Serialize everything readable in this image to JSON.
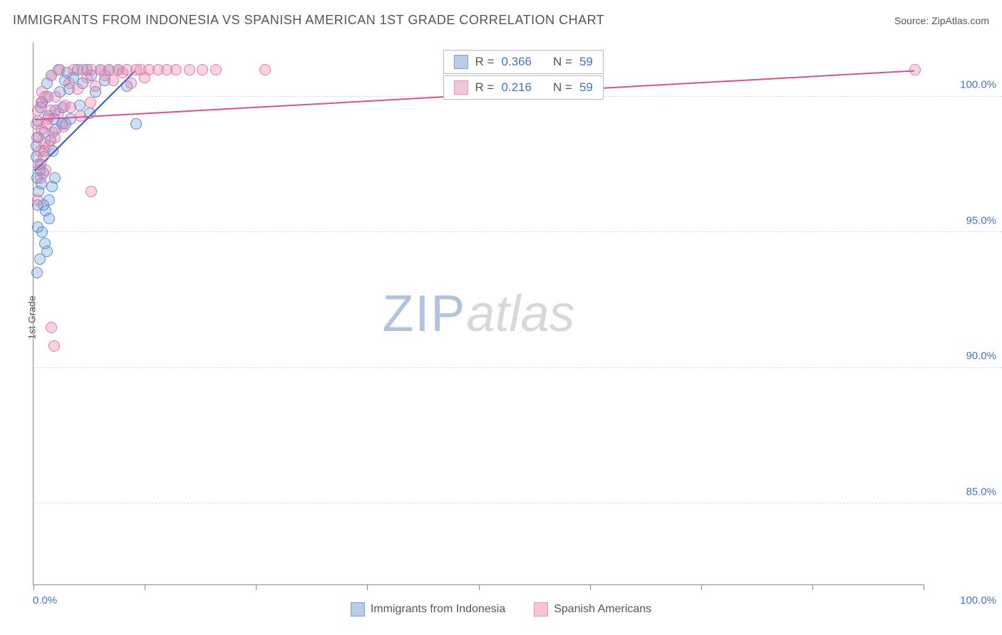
{
  "header": {
    "title": "IMMIGRANTS FROM INDONESIA VS SPANISH AMERICAN 1ST GRADE CORRELATION CHART",
    "source": "Source: ZipAtlas.com"
  },
  "watermark": {
    "zip": "ZIP",
    "atlas": "atlas"
  },
  "chart": {
    "type": "scatter",
    "y_axis_label": "1st Grade",
    "xlim": [
      0,
      100
    ],
    "ylim": [
      82,
      102
    ],
    "x_ticks": [
      0,
      12.5,
      25,
      37.5,
      50,
      62.5,
      75,
      87.5,
      100
    ],
    "x_tick_labels": {
      "0": "0.0%",
      "100": "100.0%"
    },
    "y_gridlines": [
      85,
      90,
      95,
      100
    ],
    "y_tick_labels": {
      "85": "85.0%",
      "90": "90.0%",
      "95": "95.0%",
      "100": "100.0%"
    },
    "background_color": "#ffffff",
    "grid_color": "#dddddd",
    "axis_color": "#888888",
    "tick_label_color": "#4472c4",
    "series": [
      {
        "name": "Immigrants from Indonesia",
        "color_fill": "rgba(115,160,220,0.35)",
        "color_stroke": "#5b8bd0",
        "legend_swatch_fill": "#b8cce8",
        "legend_swatch_stroke": "#7aa0d8",
        "r_value": "0.366",
        "n_value": "59",
        "trend": {
          "x1": 0.2,
          "y1": 97.3,
          "x2": 11.5,
          "y2": 101,
          "color": "#2e5cb8",
          "width": 2
        },
        "points": [
          [
            0.3,
            98.2
          ],
          [
            0.5,
            99.1
          ],
          [
            0.8,
            97.5
          ],
          [
            1.0,
            99.8
          ],
          [
            1.2,
            98.7
          ],
          [
            1.5,
            100.5
          ],
          [
            1.7,
            99.3
          ],
          [
            2.0,
            100.8
          ],
          [
            2.2,
            98.0
          ],
          [
            2.5,
            99.5
          ],
          [
            2.8,
            101
          ],
          [
            3.0,
            100.2
          ],
          [
            3.2,
            99.0
          ],
          [
            3.5,
            100.6
          ],
          [
            3.8,
            100.9
          ],
          [
            4.0,
            100.3
          ],
          [
            4.5,
            100.7
          ],
          [
            5.0,
            101
          ],
          [
            5.5,
            100.5
          ],
          [
            6.0,
            101
          ],
          [
            6.5,
            100.8
          ],
          [
            7.0,
            100.2
          ],
          [
            7.5,
            101
          ],
          [
            8.0,
            100.6
          ],
          [
            8.5,
            101
          ],
          [
            9.5,
            101
          ],
          [
            10.5,
            100.4
          ],
          [
            11.5,
            99.0
          ],
          [
            0.4,
            97.0
          ],
          [
            0.6,
            96.5
          ],
          [
            0.9,
            96.8
          ],
          [
            1.1,
            97.2
          ],
          [
            1.4,
            95.8
          ],
          [
            1.8,
            96.2
          ],
          [
            2.1,
            96.7
          ],
          [
            0.5,
            95.2
          ],
          [
            1.0,
            95.0
          ],
          [
            1.3,
            94.6
          ],
          [
            0.7,
            94.0
          ],
          [
            1.5,
            94.3
          ],
          [
            0.4,
            93.5
          ],
          [
            0.6,
            98.5
          ],
          [
            1.2,
            98.0
          ],
          [
            1.9,
            98.4
          ],
          [
            2.5,
            98.8
          ],
          [
            3.3,
            99.6
          ],
          [
            4.2,
            99.2
          ],
          [
            5.2,
            99.7
          ],
          [
            6.3,
            99.4
          ],
          [
            0.8,
            99.6
          ],
          [
            1.6,
            100.0
          ],
          [
            2.3,
            99.2
          ],
          [
            3.6,
            99.0
          ],
          [
            0.3,
            97.8
          ],
          [
            0.7,
            97.3
          ],
          [
            1.1,
            96.0
          ],
          [
            1.8,
            95.5
          ],
          [
            2.4,
            97.0
          ],
          [
            0.5,
            96.0
          ]
        ]
      },
      {
        "name": "Spanish Americans",
        "color_fill": "rgba(235,130,170,0.35)",
        "color_stroke": "#e07ba8",
        "legend_swatch_fill": "#f4c5d8",
        "legend_swatch_stroke": "#e892b8",
        "r_value": "0.216",
        "n_value": "59",
        "trend": {
          "x1": 0.2,
          "y1": 99.2,
          "x2": 99,
          "y2": 101,
          "color": "#e05090",
          "width": 2
        },
        "points": [
          [
            0.5,
            99.5
          ],
          [
            1.0,
            100.2
          ],
          [
            1.5,
            99.0
          ],
          [
            2.0,
            100.8
          ],
          [
            2.5,
            100.0
          ],
          [
            3.0,
            101
          ],
          [
            3.5,
            99.7
          ],
          [
            4.0,
            100.5
          ],
          [
            4.5,
            101
          ],
          [
            5.0,
            100.3
          ],
          [
            5.5,
            101
          ],
          [
            6.0,
            100.7
          ],
          [
            6.5,
            101
          ],
          [
            7.0,
            100.4
          ],
          [
            7.5,
            101
          ],
          [
            8.0,
            100.8
          ],
          [
            8.5,
            101
          ],
          [
            9.0,
            100.6
          ],
          [
            9.5,
            101
          ],
          [
            10.0,
            100.9
          ],
          [
            10.5,
            101
          ],
          [
            11.0,
            100.5
          ],
          [
            11.5,
            101
          ],
          [
            12.0,
            101
          ],
          [
            12.5,
            100.7
          ],
          [
            13.0,
            101
          ],
          [
            14.0,
            101
          ],
          [
            15.0,
            101
          ],
          [
            16.0,
            101
          ],
          [
            17.5,
            101
          ],
          [
            19.0,
            101
          ],
          [
            20.5,
            101
          ],
          [
            26.0,
            101
          ],
          [
            99.0,
            101
          ],
          [
            0.4,
            98.5
          ],
          [
            0.7,
            98.0
          ],
          [
            0.9,
            98.8
          ],
          [
            1.2,
            98.3
          ],
          [
            1.6,
            99.2
          ],
          [
            2.2,
            98.7
          ],
          [
            2.8,
            99.4
          ],
          [
            3.4,
            98.9
          ],
          [
            4.2,
            99.6
          ],
          [
            5.3,
            99.3
          ],
          [
            6.4,
            99.8
          ],
          [
            0.6,
            97.5
          ],
          [
            1.1,
            97.8
          ],
          [
            1.7,
            98.2
          ],
          [
            2.4,
            98.5
          ],
          [
            0.8,
            97.0
          ],
          [
            1.4,
            97.3
          ],
          [
            6.5,
            96.5
          ],
          [
            0.5,
            96.2
          ],
          [
            2.0,
            91.5
          ],
          [
            2.3,
            90.8
          ],
          [
            0.3,
            99.0
          ],
          [
            0.9,
            99.8
          ],
          [
            1.3,
            100.0
          ],
          [
            1.9,
            99.5
          ]
        ]
      }
    ]
  },
  "legend_box": {
    "top_offset_1": 10,
    "top_offset_2": 46,
    "left_pct": 46,
    "r_label": "R",
    "n_label": "N",
    "eq": "="
  },
  "bottom_legend": {
    "items": [
      {
        "label": "Immigrants from Indonesia",
        "fill": "#b8cce8",
        "stroke": "#7aa0d8"
      },
      {
        "label": "Spanish Americans",
        "fill": "#f4c5d8",
        "stroke": "#e892b8"
      }
    ]
  }
}
